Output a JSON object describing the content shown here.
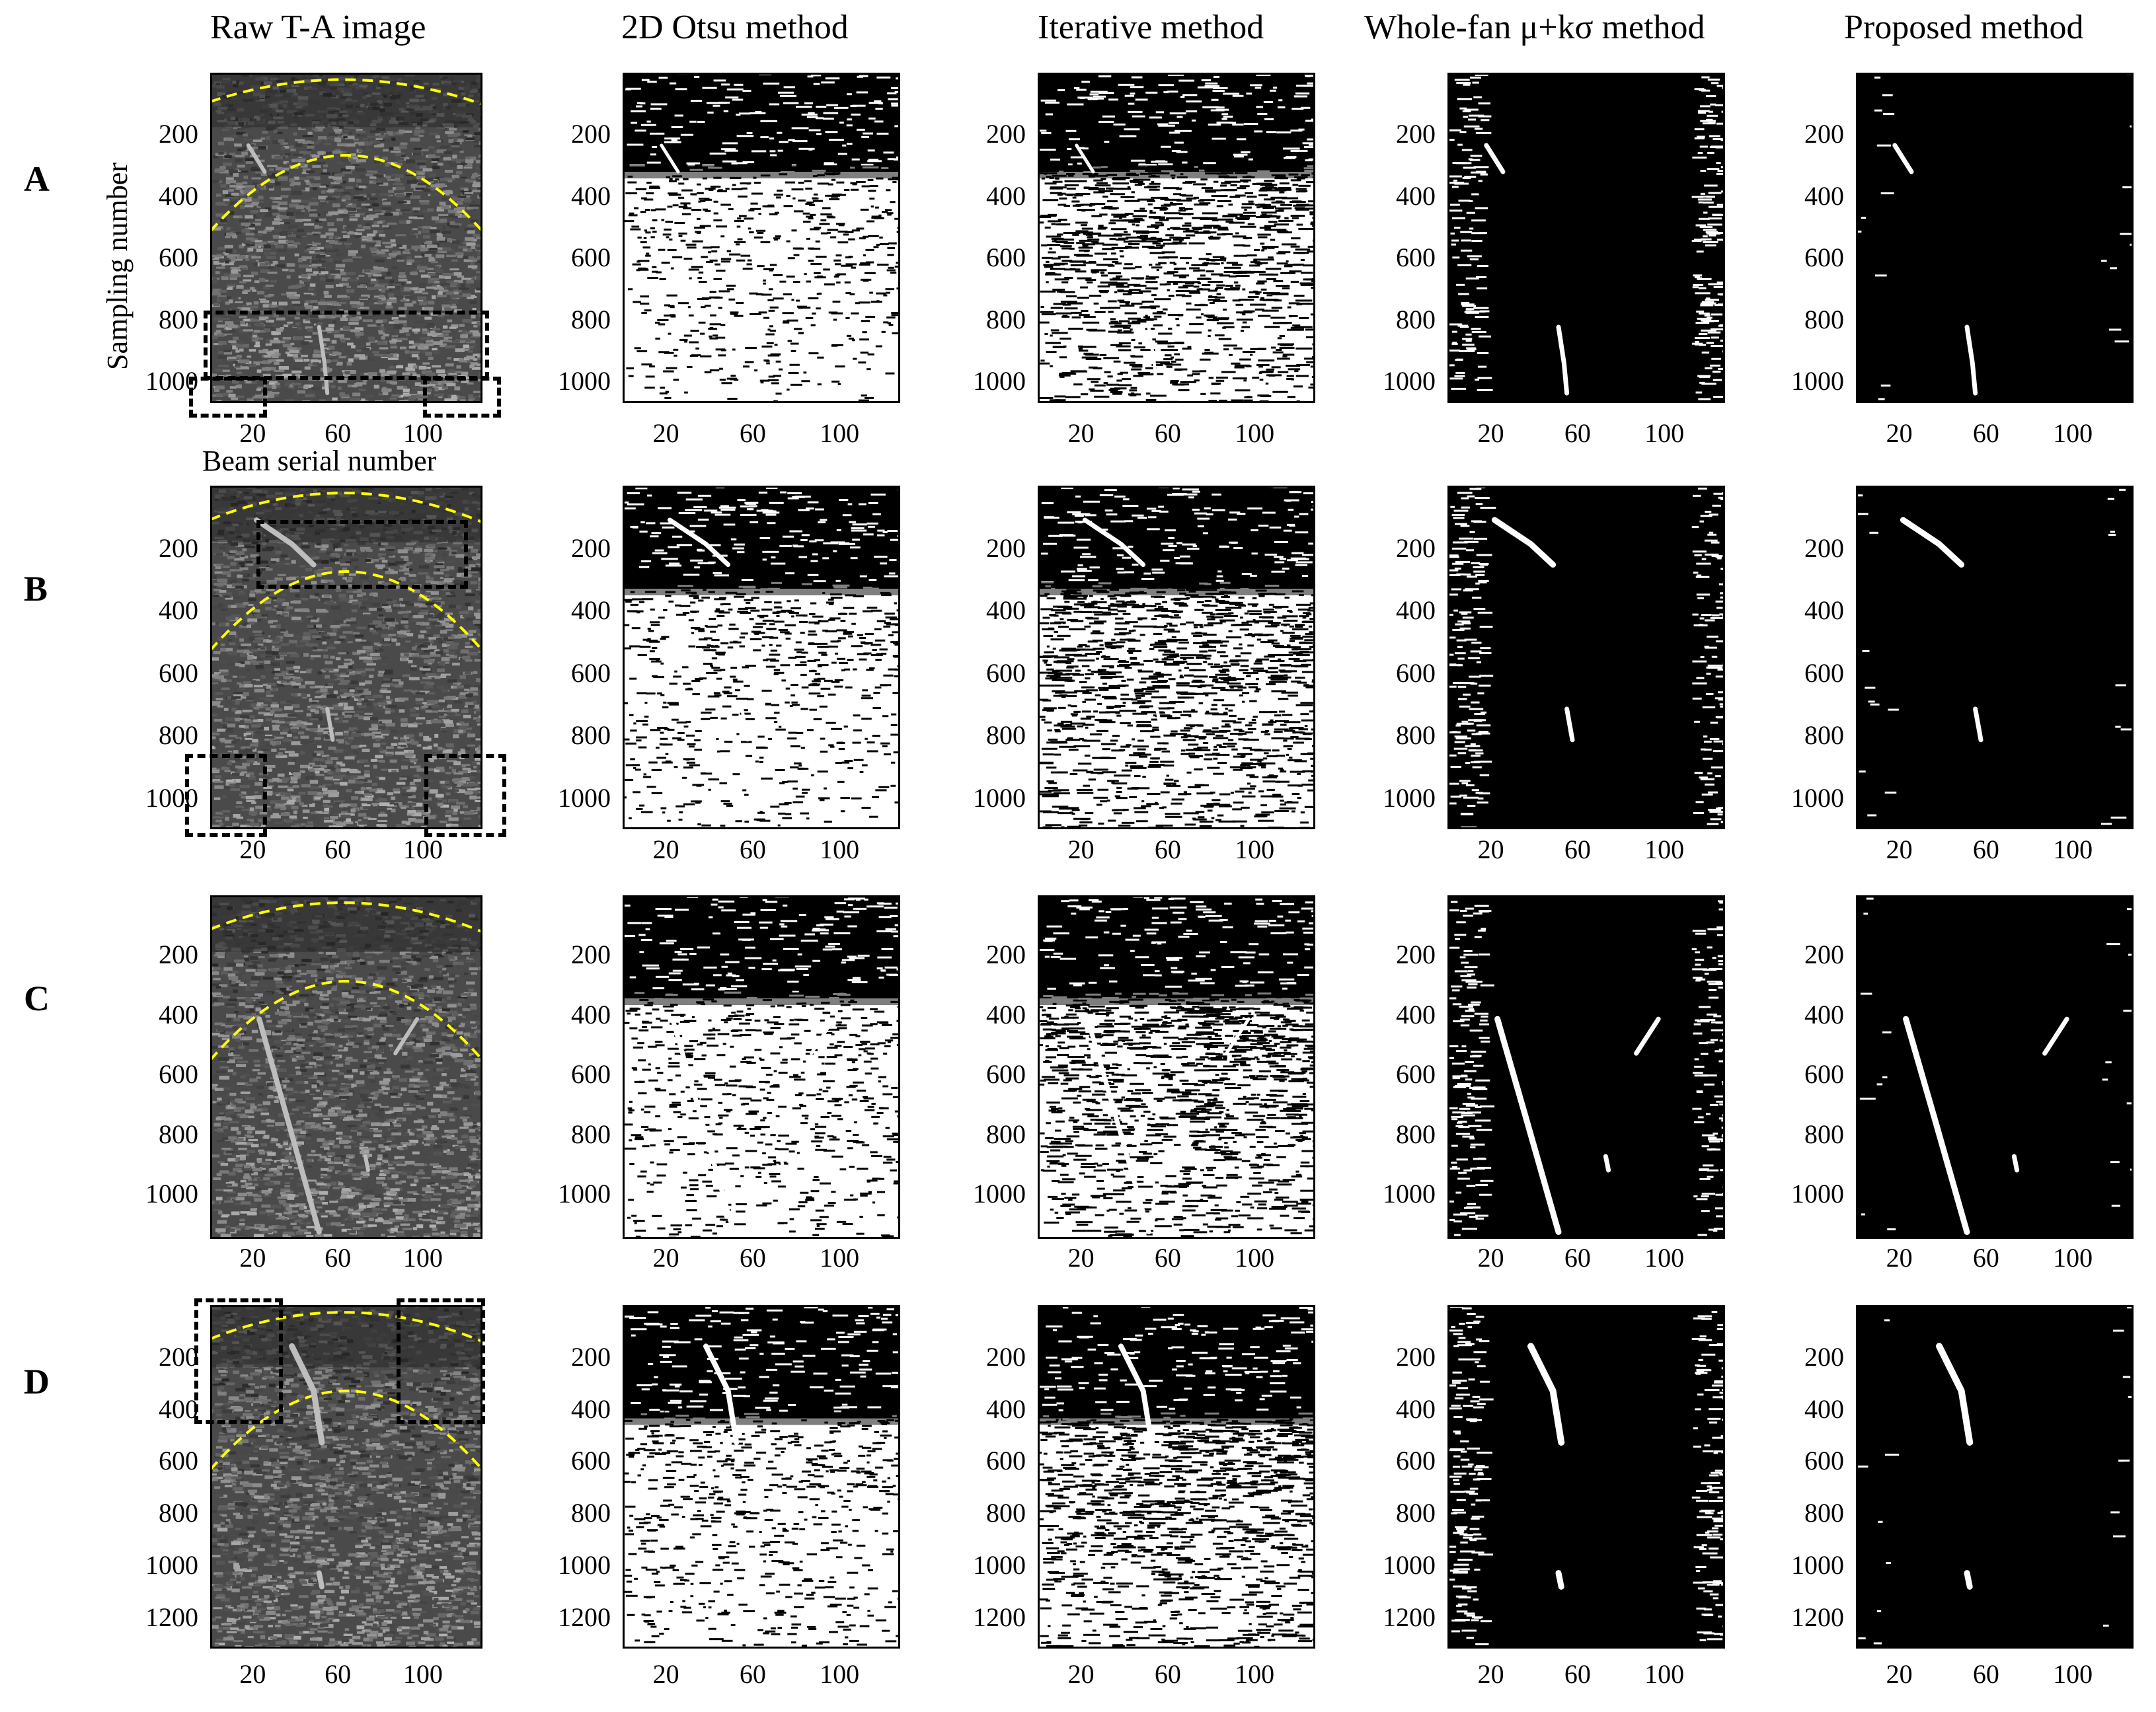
{
  "column_titles": [
    "Raw T-A image",
    "2D Otsu method",
    "Iterative method",
    "Whole-fan μ+kσ method",
    "Proposed method"
  ],
  "row_labels": [
    "A",
    "B",
    "C",
    "D"
  ],
  "axis_titles": {
    "y": "Sampling number",
    "x": "Beam serial number"
  },
  "x_ticks": [
    "20",
    "60",
    "100"
  ],
  "y_ticks_by_row": [
    [
      "200",
      "400",
      "600",
      "800",
      "1000"
    ],
    [
      "200",
      "400",
      "600",
      "800",
      "1000"
    ],
    [
      "200",
      "400",
      "600",
      "800",
      "1000"
    ],
    [
      "200",
      "400",
      "600",
      "800",
      "1000",
      "1200"
    ]
  ],
  "colors": {
    "annotation_dashed_curve": "#ffff00",
    "annotation_box": "#000000",
    "binary_foreground": "#ffffff",
    "binary_background": "#000000"
  }
}
